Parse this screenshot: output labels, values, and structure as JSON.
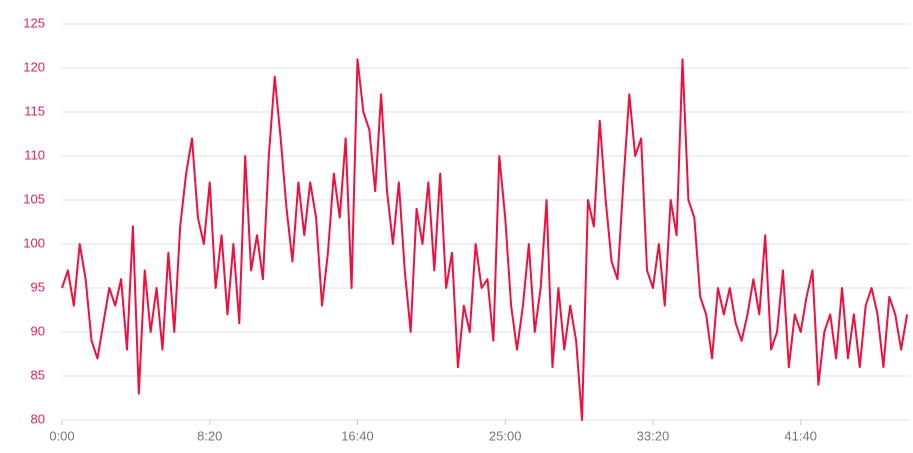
{
  "chart_data": {
    "type": "line",
    "x": [
      0,
      20,
      40,
      60,
      80,
      100,
      120,
      140,
      160,
      180,
      200,
      220,
      240,
      260,
      280,
      300,
      320,
      340,
      360,
      380,
      400,
      420,
      440,
      460,
      480,
      500,
      520,
      540,
      560,
      580,
      600,
      620,
      640,
      660,
      680,
      700,
      720,
      740,
      760,
      780,
      800,
      820,
      840,
      860,
      880,
      900,
      920,
      940,
      960,
      980,
      1000,
      1020,
      1040,
      1060,
      1080,
      1100,
      1120,
      1140,
      1160,
      1180,
      1200,
      1220,
      1240,
      1260,
      1280,
      1300,
      1320,
      1340,
      1360,
      1380,
      1400,
      1420,
      1440,
      1460,
      1480,
      1500,
      1520,
      1540,
      1560,
      1580,
      1600,
      1620,
      1640,
      1660,
      1680,
      1700,
      1720,
      1740,
      1760,
      1780,
      1800,
      1820,
      1840,
      1860,
      1880,
      1900,
      1920,
      1940,
      1960,
      1980,
      2000,
      2020,
      2040,
      2060,
      2080,
      2100,
      2120,
      2140,
      2160,
      2180,
      2200,
      2220,
      2240,
      2260,
      2280,
      2300,
      2320,
      2340,
      2360,
      2380,
      2400,
      2420,
      2440,
      2460,
      2480,
      2500,
      2520,
      2540,
      2560,
      2580,
      2600,
      2620,
      2640,
      2660,
      2680,
      2700,
      2720,
      2740,
      2760,
      2780,
      2800,
      2820,
      2840,
      2860
    ],
    "series": [
      {
        "color": "#f0103f",
        "values": [
          95,
          97,
          93,
          100,
          96,
          89,
          87,
          91,
          95,
          93,
          96,
          88,
          102,
          83,
          97,
          90,
          95,
          88,
          99,
          90,
          102,
          108,
          112,
          103,
          100,
          107,
          95,
          101,
          92,
          100,
          91,
          110,
          97,
          101,
          96,
          110,
          119,
          112,
          104,
          98,
          107,
          101,
          107,
          103,
          93,
          99,
          108,
          103,
          112,
          95,
          121,
          115,
          113,
          106,
          117,
          106,
          100,
          107,
          97,
          90,
          104,
          100,
          107,
          97,
          108,
          95,
          99,
          86,
          93,
          90,
          100,
          95,
          96,
          89,
          110,
          103,
          93,
          88,
          93,
          100,
          90,
          95,
          105,
          86,
          95,
          88,
          93,
          89,
          80,
          105,
          102,
          114,
          105,
          98,
          96,
          107,
          117,
          110,
          112,
          97,
          95,
          100,
          93,
          105,
          101,
          121,
          105,
          103,
          94,
          92,
          87,
          95,
          92,
          95,
          91,
          89,
          92,
          96,
          92,
          101,
          88,
          90,
          97,
          86,
          92,
          90,
          94,
          97,
          84,
          90,
          92,
          87,
          95,
          87,
          92,
          86,
          93,
          95,
          92,
          86,
          94,
          92,
          88,
          92
        ]
      }
    ],
    "xlim": [
      0,
      2870
    ],
    "xticks": [
      {
        "value": 0,
        "label": "0:00"
      },
      {
        "value": 500,
        "label": "8:20"
      },
      {
        "value": 1000,
        "label": "16:40"
      },
      {
        "value": 1500,
        "label": "25:00"
      },
      {
        "value": 2000,
        "label": "33:20"
      },
      {
        "value": 2500,
        "label": "41:40"
      }
    ],
    "ylim": [
      80,
      125
    ],
    "yticks": [
      80,
      85,
      90,
      95,
      100,
      105,
      110,
      115,
      120,
      125
    ],
    "grid": true
  }
}
